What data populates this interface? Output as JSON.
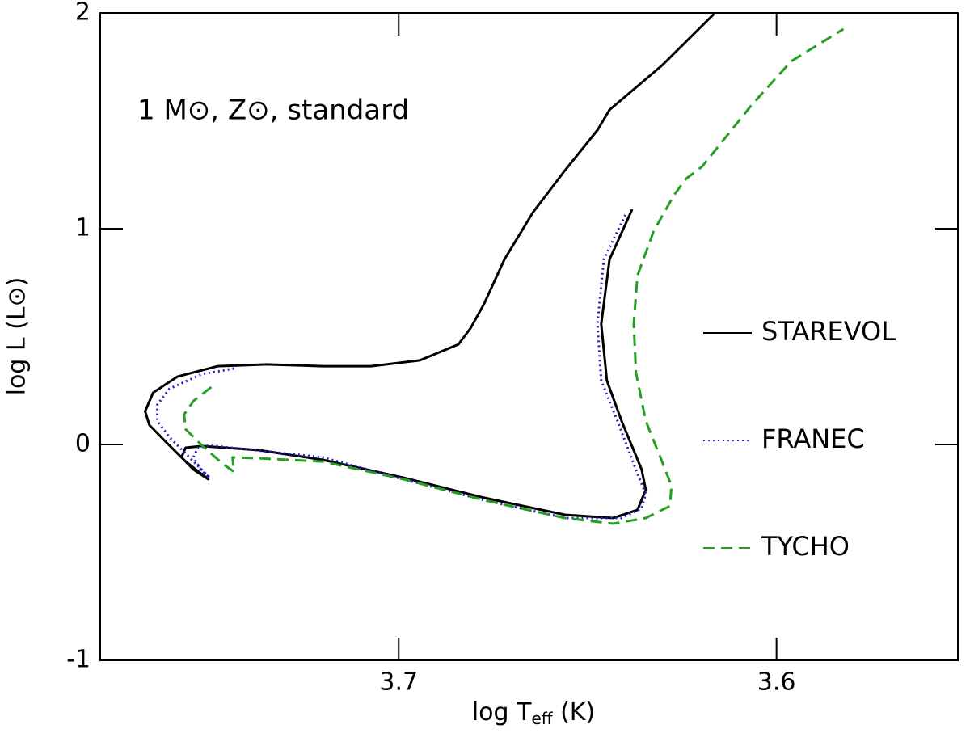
{
  "chart_data": {
    "type": "line",
    "annotation": "1 M⊙, Z⊙, standard",
    "xlabel": [
      "log T",
      "eff",
      " (K)"
    ],
    "ylabel": "log L (L⊙)",
    "xlim": [
      3.779,
      3.552
    ],
    "ylim": [
      -1,
      2
    ],
    "xticks": [
      3.7,
      3.6
    ],
    "yticks": [
      -1,
      0,
      1,
      2
    ],
    "legend": "right",
    "series": [
      {
        "name": "STAREVOL",
        "color": "#000000",
        "dash": "solid",
        "x": [
          3.6165,
          3.6303,
          3.6442,
          3.6474,
          3.656,
          3.6645,
          3.672,
          3.6774,
          3.681,
          3.6842,
          3.6944,
          3.7073,
          3.7201,
          3.735,
          3.7479,
          3.7585,
          3.765,
          3.7671,
          3.766,
          3.7618,
          3.7564,
          3.7504,
          3.7543,
          3.7575,
          3.7564,
          3.7521,
          3.7372,
          3.7201,
          3.6987,
          3.6774,
          3.656,
          3.6432,
          3.6368,
          3.6346,
          3.6357,
          3.641,
          3.6449,
          3.6464,
          3.6442,
          3.6382
        ],
        "values": [
          1.996,
          1.757,
          1.551,
          1.457,
          1.27,
          1.075,
          0.858,
          0.652,
          0.539,
          0.464,
          0.39,
          0.363,
          0.363,
          0.371,
          0.363,
          0.315,
          0.24,
          0.154,
          0.09,
          0.015,
          -0.079,
          -0.161,
          -0.116,
          -0.06,
          -0.015,
          -0.007,
          -0.026,
          -0.071,
          -0.154,
          -0.247,
          -0.326,
          -0.341,
          -0.303,
          -0.21,
          -0.116,
          0.109,
          0.296,
          0.558,
          0.858,
          1.09
        ]
      },
      {
        "name": "FRANEC",
        "color": "#2020d0",
        "dash": "dotted",
        "x": [
          3.7436,
          3.7521,
          3.7607,
          3.7639,
          3.7639,
          3.7607,
          3.7543,
          3.75,
          3.7521,
          3.7543,
          3.7532,
          3.75,
          3.7201,
          3.6987,
          3.6774,
          3.656,
          3.641,
          3.6357,
          3.6346,
          3.6368,
          3.6421,
          3.6464,
          3.6474,
          3.6457,
          3.64
        ],
        "values": [
          0.352,
          0.326,
          0.258,
          0.184,
          0.109,
          0.034,
          -0.079,
          -0.154,
          -0.124,
          -0.06,
          -0.015,
          -0.004,
          -0.06,
          -0.161,
          -0.258,
          -0.341,
          -0.341,
          -0.296,
          -0.228,
          -0.135,
          0.109,
          0.296,
          0.558,
          0.858,
          1.064
        ]
      },
      {
        "name": "TYCHO",
        "color": "#22a022",
        "dash": "dashed",
        "x": [
          3.7496,
          3.7543,
          3.7568,
          3.7564,
          3.7521,
          3.7468,
          3.7436,
          3.744,
          3.7372,
          3.7201,
          3.6987,
          3.6774,
          3.656,
          3.6432,
          3.6346,
          3.6282,
          3.6278,
          3.6303,
          3.6346,
          3.6372,
          3.6378,
          3.6368,
          3.6325,
          3.6271,
          3.6239,
          3.6197,
          3.6068,
          3.5962,
          3.5823
        ],
        "values": [
          0.266,
          0.202,
          0.139,
          0.071,
          -0.004,
          -0.086,
          -0.127,
          -0.06,
          -0.064,
          -0.079,
          -0.161,
          -0.258,
          -0.341,
          -0.367,
          -0.341,
          -0.285,
          -0.191,
          -0.079,
          0.109,
          0.333,
          0.558,
          0.783,
          0.989,
          1.157,
          1.232,
          1.288,
          1.569,
          1.775,
          1.925
        ]
      }
    ]
  }
}
